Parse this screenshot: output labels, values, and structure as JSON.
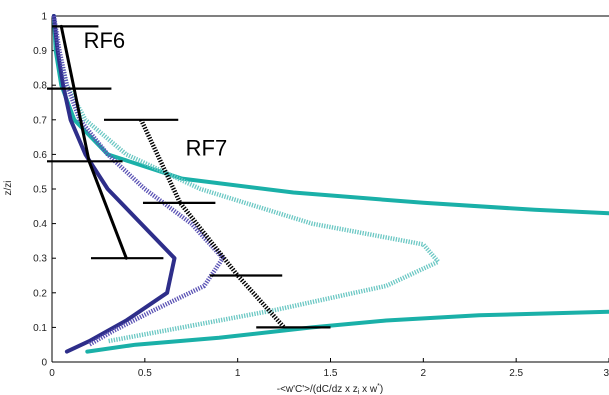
{
  "chart_data": {
    "type": "line",
    "xlabel": "-<w'C'>/(dC/dz x z",
    "xlabel_sub": "i",
    "xlabel_tail": " x w",
    "xlabel_sup": "*",
    "xlabel_end": ")",
    "ylabel": "z/zi",
    "xlim": [
      0,
      3
    ],
    "ylim": [
      0,
      1
    ],
    "x_ticks": [
      "0",
      "0.5",
      "1",
      "1.5",
      "2",
      "2.5",
      "3"
    ],
    "y_ticks": [
      "0",
      "0.1",
      "0.2",
      "0.3",
      "0.4",
      "0.5",
      "0.6",
      "0.7",
      "0.8",
      "0.9",
      "1"
    ],
    "annotations": [
      {
        "text": "RF6",
        "x": 0.17,
        "y": 0.93
      },
      {
        "text": "RF7",
        "x": 0.72,
        "y": 0.62
      }
    ],
    "series": [
      {
        "style": "solid-teal",
        "color": "#1ab0a8",
        "points": [
          [
            0.01,
            1.0
          ],
          [
            0.02,
            0.9
          ],
          [
            0.05,
            0.8
          ],
          [
            0.12,
            0.7
          ],
          [
            0.3,
            0.6
          ],
          [
            0.7,
            0.53
          ],
          [
            1.3,
            0.49
          ],
          [
            2.0,
            0.46
          ],
          [
            2.6,
            0.44
          ],
          [
            3.0,
            0.43
          ]
        ]
      },
      {
        "style": "solid-teal-lower",
        "color": "#1ab0a8",
        "points": [
          [
            0.19,
            0.03
          ],
          [
            0.45,
            0.05
          ],
          [
            0.9,
            0.07
          ],
          [
            1.4,
            0.1
          ],
          [
            1.8,
            0.12
          ],
          [
            2.3,
            0.135
          ],
          [
            3.0,
            0.145
          ]
        ]
      },
      {
        "style": "dotted-lightteal",
        "color": "#6cc8c4",
        "points": [
          [
            0.01,
            1.0
          ],
          [
            0.03,
            0.9
          ],
          [
            0.08,
            0.8
          ],
          [
            0.18,
            0.7
          ],
          [
            0.4,
            0.6
          ],
          [
            0.8,
            0.5
          ],
          [
            1.4,
            0.4
          ],
          [
            2.0,
            0.34
          ],
          [
            2.08,
            0.29
          ],
          [
            1.8,
            0.22
          ],
          [
            1.2,
            0.15
          ],
          [
            0.6,
            0.09
          ],
          [
            0.3,
            0.06
          ]
        ]
      },
      {
        "style": "solid-navy",
        "color": "#2e2e8a",
        "points": [
          [
            0.01,
            1.0
          ],
          [
            0.03,
            0.9
          ],
          [
            0.06,
            0.8
          ],
          [
            0.1,
            0.7
          ],
          [
            0.18,
            0.6
          ],
          [
            0.3,
            0.5
          ],
          [
            0.48,
            0.4
          ],
          [
            0.66,
            0.3
          ],
          [
            0.62,
            0.2
          ],
          [
            0.4,
            0.12
          ],
          [
            0.2,
            0.06
          ],
          [
            0.08,
            0.03
          ]
        ]
      },
      {
        "style": "dotted-purple",
        "color": "#5a52b4",
        "points": [
          [
            0.01,
            1.0
          ],
          [
            0.04,
            0.9
          ],
          [
            0.08,
            0.8
          ],
          [
            0.15,
            0.7
          ],
          [
            0.3,
            0.6
          ],
          [
            0.5,
            0.5
          ],
          [
            0.75,
            0.4
          ],
          [
            0.92,
            0.3
          ],
          [
            0.82,
            0.22
          ],
          [
            0.55,
            0.15
          ],
          [
            0.33,
            0.09
          ],
          [
            0.2,
            0.05
          ]
        ]
      },
      {
        "style": "solid-black",
        "color": "#000000",
        "points": [
          [
            0.05,
            0.97
          ],
          [
            0.2,
            0.58
          ],
          [
            0.4,
            0.3
          ]
        ]
      },
      {
        "style": "dotted-black",
        "color": "#000000",
        "points": [
          [
            0.48,
            0.7
          ],
          [
            0.69,
            0.46
          ],
          [
            1.0,
            0.25
          ],
          [
            1.25,
            0.1
          ]
        ]
      }
    ],
    "error_bars": [
      {
        "y": 0.97,
        "xmin": 0.0,
        "xmax": 0.25
      },
      {
        "y": 0.79,
        "xmin": -0.05,
        "xmax": 0.32
      },
      {
        "y": 0.58,
        "xmin": -0.05,
        "xmax": 0.38
      },
      {
        "y": 0.3,
        "xmin": 0.21,
        "xmax": 0.6
      },
      {
        "y": 0.7,
        "xmin": 0.28,
        "xmax": 0.68
      },
      {
        "y": 0.46,
        "xmin": 0.49,
        "xmax": 0.88
      },
      {
        "y": 0.25,
        "xmin": 0.85,
        "xmax": 1.24
      },
      {
        "y": 0.1,
        "xmin": 1.1,
        "xmax": 1.5
      }
    ]
  }
}
